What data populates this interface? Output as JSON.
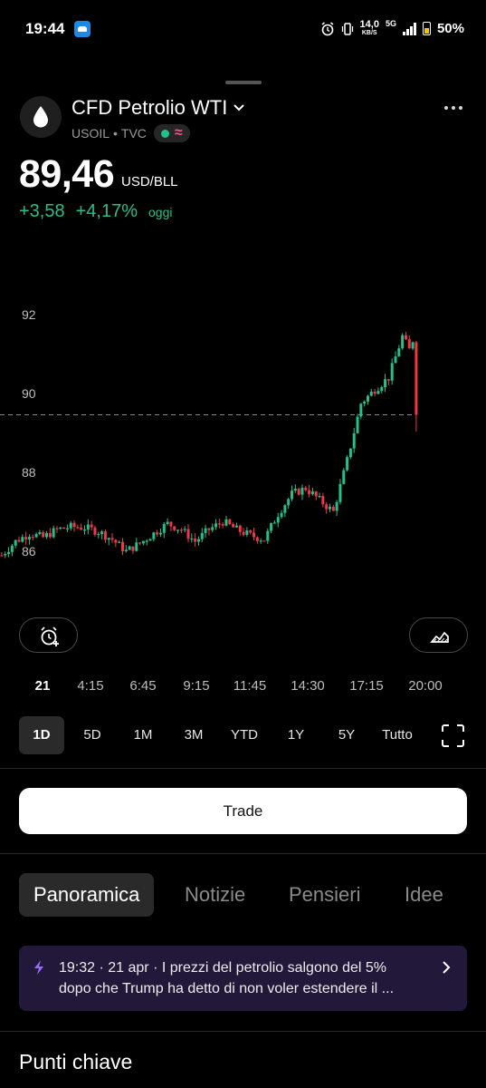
{
  "status_bar": {
    "time": "19:44",
    "network_speed_value": "14,0",
    "network_speed_unit": "KB/S",
    "network_type": "5G",
    "battery": "50%"
  },
  "symbol": {
    "name": "CFD Petrolio WTI",
    "ticker": "USOIL",
    "separator": "•",
    "exchange": "TVC",
    "delay_glyph": "≈",
    "logo_icon": "oil-drop-icon",
    "dropdown_icon": "chevron-down-icon",
    "menu_icon": "more-dots-icon"
  },
  "price": {
    "value": "89,46",
    "unit": "USD/BLL",
    "change_abs": "+3,58",
    "change_pct": "+4,17%",
    "change_period": "oggi",
    "up_color": "#22c08d",
    "down_color": "#f23645"
  },
  "chart_data": {
    "type": "candlestick",
    "y_ticks": [
      "92",
      "90",
      "88",
      "86"
    ],
    "ylim": [
      85.6,
      92.5
    ],
    "current_price_line": 89.46,
    "x_ticks": [
      "21",
      "4:15",
      "6:45",
      "9:15",
      "11:45",
      "14:30",
      "17:15",
      "20:00"
    ],
    "trend_points": [
      [
        0,
        85.9
      ],
      [
        4,
        86.25
      ],
      [
        8,
        86.45
      ],
      [
        12,
        86.35
      ],
      [
        16,
        86.55
      ],
      [
        20,
        86.62
      ],
      [
        24,
        86.6
      ],
      [
        28,
        86.5
      ],
      [
        32,
        86.3
      ],
      [
        36,
        86.0
      ],
      [
        40,
        86.2
      ],
      [
        44,
        86.45
      ],
      [
        48,
        86.7
      ],
      [
        52,
        86.55
      ],
      [
        56,
        86.25
      ],
      [
        60,
        86.55
      ],
      [
        64,
        86.75
      ],
      [
        68,
        86.55
      ],
      [
        72,
        86.4
      ],
      [
        76,
        86.3
      ],
      [
        80,
        86.95
      ],
      [
        84,
        87.45
      ],
      [
        88,
        87.6
      ],
      [
        92,
        87.3
      ],
      [
        96,
        87.0
      ],
      [
        100,
        88.3
      ],
      [
        104,
        89.75
      ],
      [
        108,
        90.1
      ],
      [
        112,
        90.4
      ],
      [
        116,
        91.45
      ],
      [
        118,
        91.1
      ],
      [
        120,
        89.3
      ]
    ]
  },
  "buttons": {
    "alert_icon": "alarm-plus-icon",
    "indicator_icon": "area-chart-icon",
    "fullscreen_icon": "fullscreen-icon",
    "trade": "Trade"
  },
  "ranges": [
    "1D",
    "5D",
    "1M",
    "3M",
    "YTD",
    "1Y",
    "5Y",
    "Tutto"
  ],
  "active_range": "1D",
  "tabs": [
    "Panoramica",
    "Notizie",
    "Pensieri",
    "Idee"
  ],
  "active_tab": "Panoramica",
  "news": {
    "meta": "19:32 · 21 apr ·",
    "headline_line1": "I prezzi del petrolio salgono del 5%",
    "headline_line2": "dopo che Trump ha detto di non voler estendere il ...",
    "icon": "lightning-bolt-icon",
    "chevron": "chevron-right-icon"
  },
  "section_title": "Punti chiave"
}
